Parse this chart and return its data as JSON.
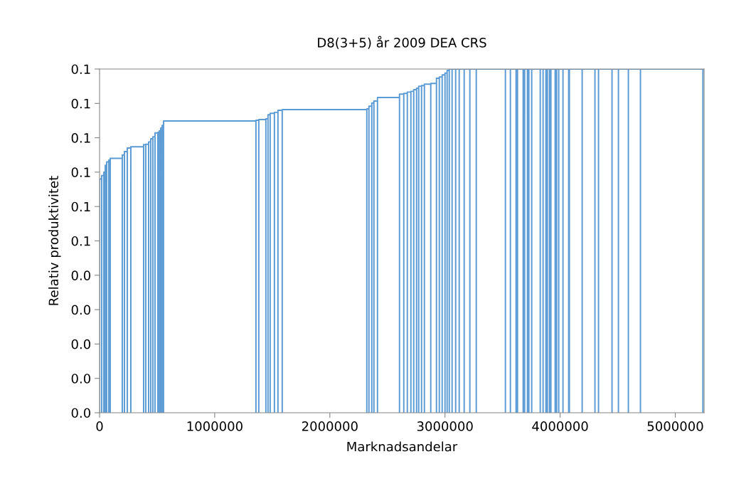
{
  "chart_data": {
    "type": "line",
    "title": "D8(3+5) år 2009 DEA CRS",
    "xlabel": "Marknadsandelar",
    "ylabel": "Relativ produktivitet",
    "xlim": [
      0,
      5250000
    ],
    "xticks": [
      0,
      1000000,
      2000000,
      3000000,
      4000000,
      5000000
    ],
    "ylim": [
      0,
      0.1
    ],
    "yticks": [
      {
        "value": 0,
        "label": "0.0"
      },
      {
        "value": 0.01,
        "label": "0.0"
      },
      {
        "value": 0.02,
        "label": "0.0"
      },
      {
        "value": 0.03,
        "label": "0.0"
      },
      {
        "value": 0.04,
        "label": "0.0"
      },
      {
        "value": 0.05,
        "label": "0.1"
      },
      {
        "value": 0.06,
        "label": "0.1"
      },
      {
        "value": 0.07,
        "label": "0.1"
      },
      {
        "value": 0.08,
        "label": "0.1"
      },
      {
        "value": 0.09,
        "label": "0.1"
      },
      {
        "value": 0.1,
        "label": "0.1"
      }
    ],
    "grid": false,
    "marker": "none",
    "line_style": "solid",
    "series": [
      {
        "color": "#5b9bd5",
        "x": [
          0,
          0,
          18500,
          18500,
          18500,
          37000,
          37000,
          37000,
          49400,
          49400,
          49400,
          61700,
          61700,
          61700,
          80200,
          80200,
          80200,
          92600,
          92600,
          92600,
          197500,
          197500,
          197500,
          216000,
          216000,
          216000,
          240700,
          240700,
          240700,
          271600,
          271600,
          271600,
          382700,
          382700,
          382700,
          401200,
          401200,
          401200,
          425900,
          425900,
          425900,
          444400,
          444400,
          444400,
          463000,
          463000,
          463000,
          481500,
          481500,
          481500,
          506200,
          506200,
          506200,
          518500,
          518500,
          518500,
          530900,
          530900,
          530900,
          543200,
          543200,
          543200,
          555600,
          555600,
          555600,
          1358000,
          1358000,
          1358000,
          1382700,
          1382700,
          1382700,
          1444400,
          1444400,
          1444400,
          1462900,
          1462900,
          1462900,
          1481500,
          1481500,
          1481500,
          1518500,
          1518500,
          1518500,
          1549400,
          1549400,
          1549400,
          1586400,
          1586400,
          1586400,
          2321000,
          2321000,
          2321000,
          2339500,
          2339500,
          2339500,
          2364200,
          2364200,
          2364200,
          2382700,
          2382700,
          2382700,
          2413600,
          2413600,
          2413600,
          2604900,
          2604900,
          2604900,
          2642000,
          2642000,
          2642000,
          2672800,
          2672800,
          2672800,
          2703700,
          2703700,
          2703700,
          2728400,
          2728400,
          2728400,
          2753100,
          2753100,
          2753100,
          2771600,
          2771600,
          2771600,
          2796300,
          2796300,
          2796300,
          2821000,
          2821000,
          2821000,
          2876500,
          2876500,
          2876500,
          2925900,
          2925900,
          2925900,
          2950600,
          2950600,
          2950600,
          2975300,
          2975300,
          2975300,
          3000000,
          3000000,
          3000000,
          3018500,
          3018500,
          3018500,
          3037000,
          3037000,
          3037000,
          3061700,
          3061700,
          3061700,
          3092600,
          3092600,
          3092600,
          3123500,
          3123500,
          3123500,
          3166700,
          3166700,
          3166700,
          3216000,
          3216000,
          3216000,
          3271600,
          3271600,
          3271600,
          3524700,
          3524700,
          3524700,
          3567900,
          3567900,
          3567900,
          3617300,
          3617300,
          3617300,
          3629600,
          3629600,
          3629600,
          3679000,
          3679000,
          3679000,
          3691400,
          3691400,
          3691400,
          3716000,
          3716000,
          3716000,
          3728400,
          3728400,
          3728400,
          3753100,
          3753100,
          3753100,
          3827200,
          3827200,
          3827200,
          3851900,
          3851900,
          3851900,
          3876500,
          3876500,
          3876500,
          3888900,
          3888900,
          3888900,
          3907400,
          3907400,
          3907400,
          3919800,
          3919800,
          3919800,
          3956800,
          3956800,
          3956800,
          3969100,
          3969100,
          3969100,
          3987700,
          3987700,
          3987700,
          4024700,
          4024700,
          4024700,
          4074100,
          4074100,
          4074100,
          4080200,
          4080200,
          4080200,
          4191300,
          4191300,
          4191300,
          4302400,
          4302400,
          4302400,
          4333300,
          4333300,
          4333300,
          4450600,
          4450600,
          4450600,
          4506200,
          4506200,
          4506200,
          4592600,
          4592600,
          4592600,
          4697500,
          4697500,
          4697500,
          5240000,
          5240000
        ],
        "values": [
          0,
          0.068,
          0.068,
          0,
          0.069,
          0.069,
          0,
          0.07,
          0.07,
          0,
          0.072,
          0.072,
          0,
          0.073,
          0.073,
          0,
          0.0735,
          0.0735,
          0,
          0.074,
          0.074,
          0,
          0.075,
          0.075,
          0,
          0.076,
          0.076,
          0,
          0.077,
          0.077,
          0,
          0.0774,
          0.0774,
          0,
          0.078,
          0.078,
          0,
          0.0781,
          0.0781,
          0,
          0.0788,
          0.0788,
          0,
          0.0797,
          0.0797,
          0,
          0.0803,
          0.0803,
          0,
          0.0814,
          0.0814,
          0,
          0.0816,
          0.0816,
          0,
          0.082,
          0.082,
          0,
          0.0828,
          0.0828,
          0,
          0.0836,
          0.0836,
          0,
          0.0849,
          0.0849,
          0,
          0.0851,
          0.0851,
          0,
          0.0853,
          0.0853,
          0,
          0.0855,
          0.0855,
          0,
          0.0867,
          0.0867,
          0,
          0.0871,
          0.0871,
          0,
          0.0874,
          0.0874,
          0,
          0.088,
          0.088,
          0,
          0.0882,
          0.0882,
          0,
          0.0884,
          0.0884,
          0,
          0.0892,
          0.0892,
          0,
          0.0901,
          0.0901,
          0,
          0.0907,
          0.0907,
          0,
          0.0917,
          0.0917,
          0,
          0.0927,
          0.0927,
          0,
          0.0929,
          0.0929,
          0,
          0.0933,
          0.0933,
          0,
          0.0935,
          0.0935,
          0,
          0.094,
          0.094,
          0,
          0.0944,
          0.0944,
          0,
          0.095,
          0.095,
          0,
          0.0952,
          0.0952,
          0,
          0.0956,
          0.0956,
          0,
          0.0958,
          0.0958,
          0,
          0.0973,
          0.0973,
          0,
          0.0977,
          0.0977,
          0,
          0.0983,
          0.0983,
          0,
          0.0988,
          0.0988,
          0,
          0.0996,
          0.0996,
          0,
          0.1,
          0.1,
          0,
          0.1,
          0.1,
          0,
          0.1,
          0.1,
          0,
          0.1,
          0.1,
          0,
          0.1,
          0.1,
          0,
          0.1,
          0.1,
          0,
          0.1,
          0.1,
          0,
          0.1,
          0.1,
          0,
          0.1,
          0.1,
          0,
          0.1,
          0.1,
          0,
          0.1,
          0.1,
          0,
          0.1,
          0.1,
          0,
          0.1,
          0.1,
          0,
          0.1,
          0.1,
          0,
          0.1,
          0.1,
          0,
          0.1,
          0.1,
          0,
          0.1,
          0.1,
          0,
          0.1,
          0.1,
          0,
          0.1,
          0.1,
          0,
          0.1,
          0.1,
          0,
          0.1,
          0.1,
          0,
          0.1,
          0.1,
          0,
          0.1,
          0.1,
          0,
          0.1,
          0.1,
          0,
          0.1,
          0.1,
          0,
          0.1,
          0.1,
          0,
          0.1,
          0.1,
          0,
          0.1,
          0.1,
          0,
          0.1,
          0.1,
          0,
          0.1,
          0.1,
          0,
          0.1,
          0.1,
          0,
          0.1,
          0.1,
          0,
          0.1,
          0.1,
          0,
          0.1,
          0.1,
          0,
          0.1,
          0.1,
          0
        ]
      }
    ]
  }
}
